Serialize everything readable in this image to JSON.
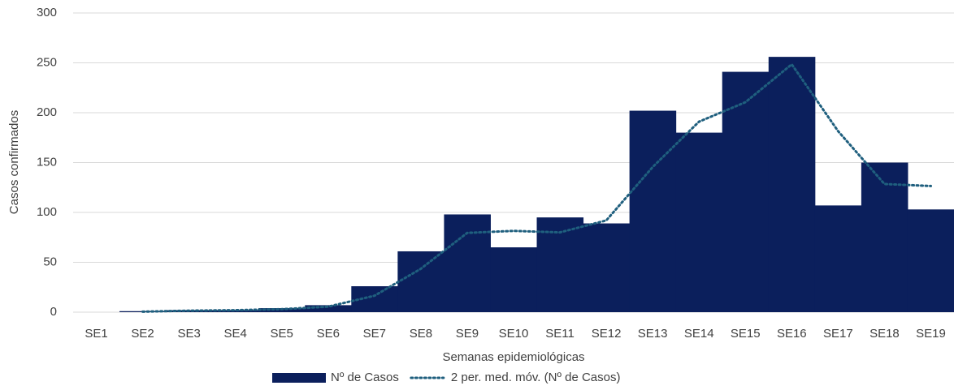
{
  "chart_data": {
    "type": "bar",
    "x_label": "Semanas epidemiológicas",
    "y_label": "Casos confirmados",
    "categories": [
      "SE1",
      "SE2",
      "SE3",
      "SE4",
      "SE5",
      "SE6",
      "SE7",
      "SE8",
      "SE9",
      "SE10",
      "SE11",
      "SE12",
      "SE13",
      "SE14",
      "SE15",
      "SE16",
      "SE17",
      "SE18",
      "SE19"
    ],
    "series": [
      {
        "name": "Nº de Casos",
        "color": "#0b1f5c",
        "type": "bar",
        "values": [
          0,
          1,
          2,
          2,
          4,
          7,
          26,
          61,
          98,
          65,
          95,
          89,
          202,
          180,
          241,
          256,
          107,
          150,
          103
        ]
      },
      {
        "name": "2 per. med. móv. (Nº de Casos)",
        "color": "#1f5f7e",
        "type": "line",
        "values": [
          null,
          0.5,
          1.5,
          2,
          3,
          5.5,
          16.5,
          43.5,
          79.5,
          81.5,
          80,
          92,
          145.5,
          191,
          210.5,
          248.5,
          181.5,
          128.5,
          126.5
        ]
      }
    ],
    "ylim": [
      0,
      300
    ],
    "yticks": [
      0,
      50,
      100,
      150,
      200,
      250,
      300
    ],
    "grid": true,
    "legend": "bottom"
  }
}
